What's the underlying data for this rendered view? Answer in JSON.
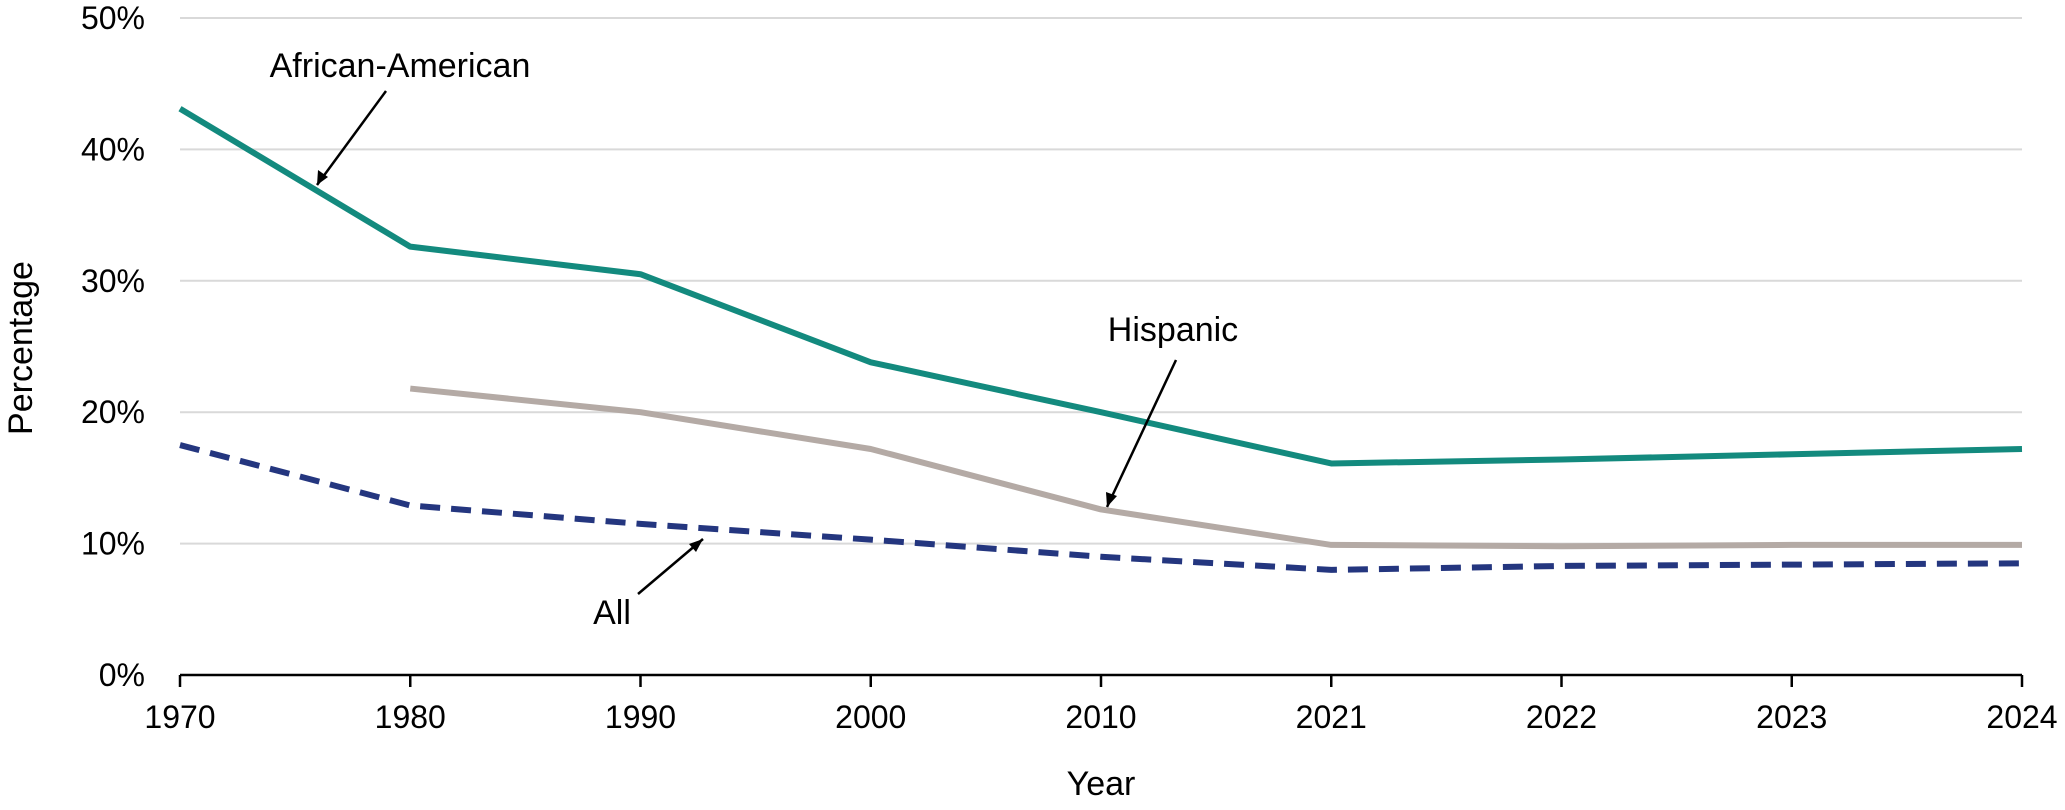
{
  "chart_data": {
    "type": "line",
    "title": "",
    "xlabel": "Year",
    "ylabel": "Percentage",
    "categories": [
      "1970",
      "1980",
      "1990",
      "2000",
      "2010",
      "2021",
      "2022",
      "2023",
      "2024"
    ],
    "ylim": [
      0,
      50
    ],
    "yticks": [
      "0%",
      "10%",
      "20%",
      "30%",
      "40%",
      "50%"
    ],
    "grid": true,
    "legend": "none",
    "series": [
      {
        "name": "African-American",
        "color": "#138a7e",
        "dash": "solid",
        "values": [
          43.1,
          32.6,
          30.5,
          23.8,
          20.0,
          16.1,
          16.4,
          16.8,
          17.2
        ]
      },
      {
        "name": "Hispanic",
        "color": "#b4aaa5",
        "dash": "solid",
        "values": [
          null,
          21.8,
          20.0,
          17.2,
          12.6,
          9.9,
          9.8,
          9.9,
          9.9
        ]
      },
      {
        "name": "All",
        "color": "#24367f",
        "dash": "dashed",
        "values": [
          17.5,
          12.9,
          11.5,
          10.3,
          9.0,
          8.0,
          8.3,
          8.4,
          8.5
        ]
      }
    ]
  }
}
